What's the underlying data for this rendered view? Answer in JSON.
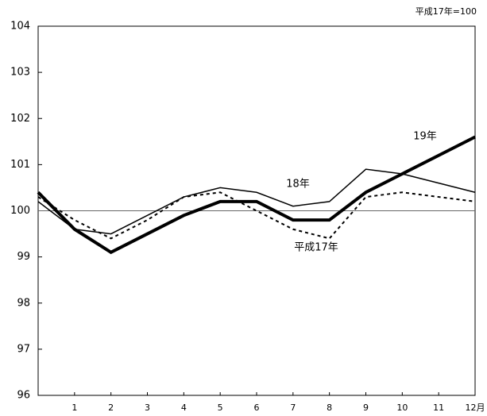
{
  "chart_data": {
    "type": "line",
    "note": "平成17年=100",
    "x": [
      0,
      1,
      2,
      3,
      4,
      5,
      6,
      7,
      8,
      9,
      10,
      11,
      12
    ],
    "xlim": [
      0,
      12
    ],
    "xticks": [
      1,
      2,
      3,
      4,
      5,
      6,
      7,
      8,
      9,
      10,
      11,
      {
        "value": 12,
        "label": "12月"
      }
    ],
    "ylim": [
      96,
      104
    ],
    "yticks": [
      96,
      97,
      98,
      99,
      100,
      101,
      102,
      103,
      104
    ],
    "reference_line": 100,
    "series": [
      {
        "name": "平成17年",
        "color": "#000000",
        "style": "dashed",
        "values": [
          100.3,
          99.8,
          99.4,
          99.8,
          100.3,
          100.4,
          100.0,
          99.6,
          99.4,
          100.3,
          100.4,
          100.3,
          100.2
        ]
      },
      {
        "name": "18年",
        "color": "#000000",
        "style": "thin",
        "values": [
          100.2,
          99.6,
          99.5,
          99.9,
          100.3,
          100.5,
          100.4,
          100.1,
          100.2,
          100.9,
          100.8,
          100.6,
          100.4
        ]
      },
      {
        "name": "19年",
        "color": "#000000",
        "style": "thick",
        "values": [
          100.4,
          99.6,
          99.1,
          99.5,
          99.9,
          100.2,
          100.2,
          99.8,
          99.8,
          100.4,
          100.8,
          101.2,
          101.6
        ]
      }
    ]
  }
}
